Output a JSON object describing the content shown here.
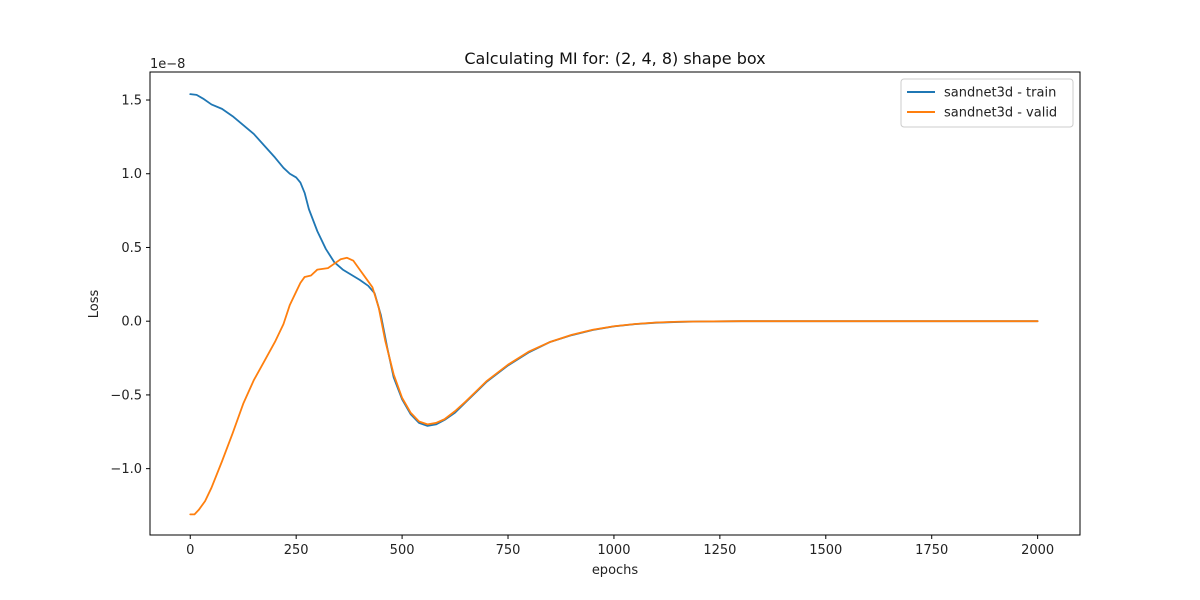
{
  "chart_data": {
    "type": "line",
    "title": "Calculating MI for: (2, 4, 8) shape box",
    "xlabel": "epochs",
    "ylabel": "Loss",
    "y_offset_label": "1e−8",
    "xlim": [
      -95,
      2100
    ],
    "ylim": [
      -1.45,
      1.69
    ],
    "grid": false,
    "legend_position": "top-right",
    "x_ticks": [
      0,
      250,
      500,
      750,
      1000,
      1250,
      1500,
      1750,
      2000
    ],
    "x_tick_labels": [
      "0",
      "250",
      "500",
      "750",
      "1000",
      "1250",
      "1500",
      "1750",
      "2000"
    ],
    "y_ticks": [
      -1.0,
      -0.5,
      0.0,
      0.5,
      1.0,
      1.5
    ],
    "y_tick_labels": [
      "−1.0",
      "−0.5",
      "0.0",
      "0.5",
      "1.0",
      "1.5"
    ],
    "series": [
      {
        "name": "sandnet3d - train",
        "color": "#1f77b4",
        "points": [
          [
            0,
            1.54
          ],
          [
            15,
            1.535
          ],
          [
            30,
            1.51
          ],
          [
            50,
            1.47
          ],
          [
            75,
            1.44
          ],
          [
            100,
            1.39
          ],
          [
            125,
            1.33
          ],
          [
            150,
            1.27
          ],
          [
            175,
            1.19
          ],
          [
            200,
            1.11
          ],
          [
            220,
            1.04
          ],
          [
            235,
            1.0
          ],
          [
            250,
            0.975
          ],
          [
            260,
            0.94
          ],
          [
            270,
            0.87
          ],
          [
            280,
            0.76
          ],
          [
            300,
            0.61
          ],
          [
            320,
            0.49
          ],
          [
            340,
            0.4
          ],
          [
            360,
            0.35
          ],
          [
            380,
            0.315
          ],
          [
            400,
            0.28
          ],
          [
            420,
            0.24
          ],
          [
            435,
            0.19
          ],
          [
            450,
            0.04
          ],
          [
            465,
            -0.18
          ],
          [
            480,
            -0.38
          ],
          [
            500,
            -0.53
          ],
          [
            520,
            -0.63
          ],
          [
            540,
            -0.69
          ],
          [
            560,
            -0.71
          ],
          [
            580,
            -0.7
          ],
          [
            600,
            -0.67
          ],
          [
            625,
            -0.62
          ],
          [
            650,
            -0.55
          ],
          [
            675,
            -0.48
          ],
          [
            700,
            -0.41
          ],
          [
            750,
            -0.3
          ],
          [
            800,
            -0.21
          ],
          [
            850,
            -0.14
          ],
          [
            900,
            -0.095
          ],
          [
            950,
            -0.06
          ],
          [
            1000,
            -0.035
          ],
          [
            1050,
            -0.02
          ],
          [
            1100,
            -0.01
          ],
          [
            1150,
            -0.005
          ],
          [
            1200,
            -0.002
          ],
          [
            1300,
            0.0
          ],
          [
            1400,
            0.0
          ],
          [
            1600,
            0.0
          ],
          [
            1800,
            0.0
          ],
          [
            2000,
            0.0
          ]
        ]
      },
      {
        "name": "sandnet3d - valid",
        "color": "#ff7f0e",
        "points": [
          [
            0,
            -1.31
          ],
          [
            10,
            -1.31
          ],
          [
            20,
            -1.28
          ],
          [
            35,
            -1.22
          ],
          [
            50,
            -1.13
          ],
          [
            75,
            -0.95
          ],
          [
            100,
            -0.76
          ],
          [
            125,
            -0.56
          ],
          [
            150,
            -0.4
          ],
          [
            175,
            -0.27
          ],
          [
            200,
            -0.14
          ],
          [
            220,
            -0.02
          ],
          [
            235,
            0.11
          ],
          [
            250,
            0.2
          ],
          [
            260,
            0.26
          ],
          [
            270,
            0.3
          ],
          [
            285,
            0.31
          ],
          [
            300,
            0.35
          ],
          [
            325,
            0.36
          ],
          [
            340,
            0.39
          ],
          [
            355,
            0.42
          ],
          [
            370,
            0.43
          ],
          [
            385,
            0.41
          ],
          [
            400,
            0.35
          ],
          [
            415,
            0.29
          ],
          [
            430,
            0.23
          ],
          [
            445,
            0.09
          ],
          [
            460,
            -0.13
          ],
          [
            480,
            -0.36
          ],
          [
            500,
            -0.52
          ],
          [
            520,
            -0.62
          ],
          [
            540,
            -0.68
          ],
          [
            560,
            -0.7
          ],
          [
            580,
            -0.69
          ],
          [
            600,
            -0.665
          ],
          [
            625,
            -0.61
          ],
          [
            650,
            -0.545
          ],
          [
            675,
            -0.475
          ],
          [
            700,
            -0.405
          ],
          [
            750,
            -0.295
          ],
          [
            800,
            -0.205
          ],
          [
            850,
            -0.14
          ],
          [
            900,
            -0.093
          ],
          [
            950,
            -0.058
          ],
          [
            1000,
            -0.034
          ],
          [
            1050,
            -0.019
          ],
          [
            1100,
            -0.009
          ],
          [
            1150,
            -0.004
          ],
          [
            1200,
            -0.002
          ],
          [
            1300,
            0.0
          ],
          [
            1400,
            0.0
          ],
          [
            1600,
            0.0
          ],
          [
            1800,
            0.0
          ],
          [
            2000,
            0.0
          ]
        ]
      }
    ]
  }
}
